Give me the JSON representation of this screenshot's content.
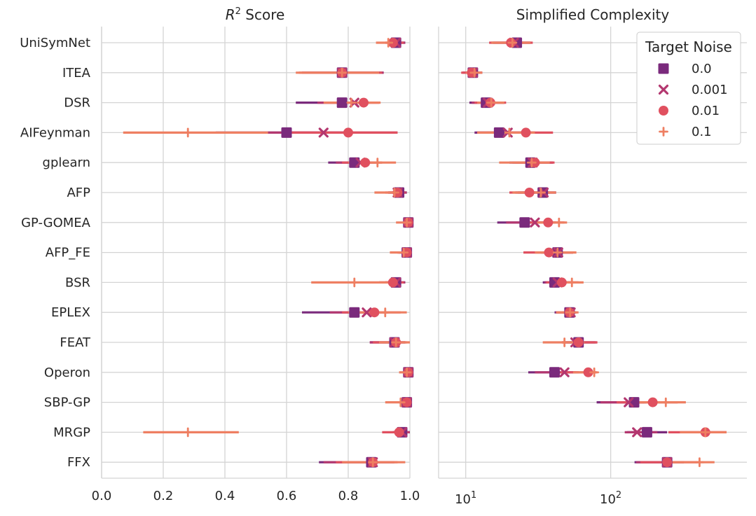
{
  "chart_data": [
    {
      "type": "dot-errorbar",
      "title_var": "R",
      "title_sup": "2",
      "title_rest": " Score",
      "xscale": "linear",
      "xlim": [
        0.0,
        1.0
      ],
      "xticks": [
        0.0,
        0.2,
        0.4,
        0.6,
        0.8,
        1.0
      ],
      "xtick_labels": [
        "0.0",
        "0.2",
        "0.4",
        "0.6",
        "0.8",
        "1.0"
      ],
      "categories": [
        "UniSymNet",
        "ITEA",
        "DSR",
        "AIFeynman",
        "gplearn",
        "AFP",
        "GP-GOMEA",
        "AFP_FE",
        "BSR",
        "EPLEX",
        "FEAT",
        "Operon",
        "SBP-GP",
        "MRGP",
        "FFX"
      ],
      "series": [
        {
          "name": "0.0",
          "points": [
            {
              "v": 0.955,
              "lo": 0.93,
              "hi": 0.985
            },
            {
              "v": 0.78,
              "lo": 0.65,
              "hi": 0.915
            },
            {
              "v": 0.78,
              "lo": 0.63,
              "hi": 0.86
            },
            {
              "v": 0.6,
              "lo": 0.37,
              "hi": 0.8
            },
            {
              "v": 0.82,
              "lo": 0.735,
              "hi": 0.87
            },
            {
              "v": 0.965,
              "lo": 0.93,
              "hi": 0.99
            },
            {
              "v": 0.995,
              "lo": 0.985,
              "hi": 1.0
            },
            {
              "v": 0.99,
              "lo": 0.965,
              "hi": 1.0
            },
            {
              "v": 0.955,
              "lo": 0.92,
              "hi": 0.985
            },
            {
              "v": 0.82,
              "lo": 0.65,
              "hi": 0.89
            },
            {
              "v": 0.95,
              "lo": 0.87,
              "hi": 0.985
            },
            {
              "v": 0.995,
              "lo": 0.985,
              "hi": 1.0
            },
            {
              "v": 0.99,
              "lo": 0.97,
              "hi": 1.0
            },
            {
              "v": 0.975,
              "lo": 0.945,
              "hi": 1.0
            },
            {
              "v": 0.875,
              "lo": 0.705,
              "hi": 0.95
            }
          ]
        },
        {
          "name": "0.001",
          "points": [
            {
              "v": 0.955,
              "lo": 0.93,
              "hi": 0.985
            },
            {
              "v": 0.78,
              "lo": 0.65,
              "hi": 0.915
            },
            {
              "v": 0.82,
              "lo": 0.7,
              "hi": 0.87
            },
            {
              "v": 0.72,
              "lo": 0.54,
              "hi": 0.96
            },
            {
              "v": 0.84,
              "lo": 0.76,
              "hi": 0.89
            },
            {
              "v": 0.96,
              "lo": 0.93,
              "hi": 0.99
            },
            {
              "v": 0.995,
              "lo": 0.985,
              "hi": 1.0
            },
            {
              "v": 0.99,
              "lo": 0.965,
              "hi": 1.0
            },
            {
              "v": 0.955,
              "lo": 0.92,
              "hi": 0.985
            },
            {
              "v": 0.86,
              "lo": 0.74,
              "hi": 0.93
            },
            {
              "v": 0.95,
              "lo": 0.87,
              "hi": 0.985
            },
            {
              "v": 0.995,
              "lo": 0.985,
              "hi": 1.0
            },
            {
              "v": 0.99,
              "lo": 0.97,
              "hi": 1.0
            },
            {
              "v": 0.975,
              "lo": 0.945,
              "hi": 1.0
            },
            {
              "v": 0.88,
              "lo": 0.72,
              "hi": 0.95
            }
          ]
        },
        {
          "name": "0.01",
          "points": [
            {
              "v": 0.945,
              "lo": 0.92,
              "hi": 0.98
            },
            {
              "v": 0.78,
              "lo": 0.64,
              "hi": 0.91
            },
            {
              "v": 0.85,
              "lo": 0.74,
              "hi": 0.9
            },
            {
              "v": 0.8,
              "lo": 0.6,
              "hi": 0.96
            },
            {
              "v": 0.855,
              "lo": 0.78,
              "hi": 0.91
            },
            {
              "v": 0.96,
              "lo": 0.92,
              "hi": 0.985
            },
            {
              "v": 0.995,
              "lo": 0.98,
              "hi": 1.0
            },
            {
              "v": 0.99,
              "lo": 0.96,
              "hi": 1.0
            },
            {
              "v": 0.945,
              "lo": 0.9,
              "hi": 0.98
            },
            {
              "v": 0.885,
              "lo": 0.78,
              "hi": 0.97
            },
            {
              "v": 0.955,
              "lo": 0.88,
              "hi": 0.99
            },
            {
              "v": 0.995,
              "lo": 0.98,
              "hi": 1.0
            },
            {
              "v": 0.99,
              "lo": 0.965,
              "hi": 1.0
            },
            {
              "v": 0.965,
              "lo": 0.91,
              "hi": 0.995
            },
            {
              "v": 0.88,
              "lo": 0.76,
              "hi": 0.96
            }
          ]
        },
        {
          "name": "0.1",
          "points": [
            {
              "v": 0.93,
              "lo": 0.89,
              "hi": 0.97
            },
            {
              "v": 0.78,
              "lo": 0.63,
              "hi": 0.9
            },
            {
              "v": 0.81,
              "lo": 0.72,
              "hi": 0.905
            },
            {
              "v": 0.28,
              "lo": 0.07,
              "hi": 0.54
            },
            {
              "v": 0.895,
              "lo": 0.8,
              "hi": 0.955
            },
            {
              "v": 0.95,
              "lo": 0.885,
              "hi": 0.98
            },
            {
              "v": 0.99,
              "lo": 0.955,
              "hi": 1.0
            },
            {
              "v": 0.98,
              "lo": 0.935,
              "hi": 1.0
            },
            {
              "v": 0.82,
              "lo": 0.68,
              "hi": 0.94
            },
            {
              "v": 0.92,
              "lo": 0.8,
              "hi": 0.99
            },
            {
              "v": 0.955,
              "lo": 0.9,
              "hi": 1.0
            },
            {
              "v": 0.99,
              "lo": 0.965,
              "hi": 1.0
            },
            {
              "v": 0.97,
              "lo": 0.92,
              "hi": 1.0
            },
            {
              "v": 0.28,
              "lo": 0.135,
              "hi": 0.445
            },
            {
              "v": 0.88,
              "lo": 0.78,
              "hi": 0.985
            }
          ]
        }
      ]
    },
    {
      "type": "dot-errorbar",
      "title": "Simplified Complexity",
      "xscale": "log",
      "xlim": [
        6.5,
        870
      ],
      "xticks": [
        10,
        100
      ],
      "xtick_base": [
        "10",
        "10"
      ],
      "xtick_exp": [
        "1",
        "2"
      ],
      "categories": [
        "UniSymNet",
        "ITEA",
        "DSR",
        "AIFeynman",
        "gplearn",
        "AFP",
        "GP-GOMEA",
        "AFP_FE",
        "BSR",
        "EPLEX",
        "FEAT",
        "Operon",
        "SBP-GP",
        "MRGP",
        "FFX"
      ],
      "series": [
        {
          "name": "0.0",
          "points": [
            {
              "v": 22.5,
              "lo": 15.5,
              "hi": 28
            },
            {
              "v": 11.2,
              "lo": 9.5,
              "hi": 13.0
            },
            {
              "v": 13.8,
              "lo": 10.6,
              "hi": 18.5
            },
            {
              "v": 17.0,
              "lo": 11.5,
              "hi": 28
            },
            {
              "v": 28.0,
              "lo": 20,
              "hi": 40
            },
            {
              "v": 34.0,
              "lo": 22,
              "hi": 42
            },
            {
              "v": 25.5,
              "lo": 16.5,
              "hi": 40
            },
            {
              "v": 43.0,
              "lo": 33,
              "hi": 55
            },
            {
              "v": 41.0,
              "lo": 34,
              "hi": 53
            },
            {
              "v": 52.0,
              "lo": 41,
              "hi": 57
            },
            {
              "v": 60.0,
              "lo": 48,
              "hi": 80
            },
            {
              "v": 41.0,
              "lo": 27,
              "hi": 58
            },
            {
              "v": 145.0,
              "lo": 80,
              "hi": 175
            },
            {
              "v": 178.0,
              "lo": 130,
              "hi": 245
            },
            {
              "v": 245.0,
              "lo": 146,
              "hi": 320
            }
          ]
        },
        {
          "name": "0.001",
          "points": [
            {
              "v": 21.5,
              "lo": 15,
              "hi": 28
            },
            {
              "v": 11.2,
              "lo": 9.5,
              "hi": 13.0
            },
            {
              "v": 14.2,
              "lo": 11,
              "hi": 18.5
            },
            {
              "v": 19.5,
              "lo": 12,
              "hi": 30
            },
            {
              "v": 29.0,
              "lo": 21,
              "hi": 40
            },
            {
              "v": 34.5,
              "lo": 23,
              "hi": 42
            },
            {
              "v": 30.0,
              "lo": 19,
              "hi": 42
            },
            {
              "v": 43.5,
              "lo": 34,
              "hi": 55
            },
            {
              "v": 43.0,
              "lo": 35,
              "hi": 55
            },
            {
              "v": 53.0,
              "lo": 42,
              "hi": 58
            },
            {
              "v": 57.0,
              "lo": 46,
              "hi": 78
            },
            {
              "v": 48.0,
              "lo": 30,
              "hi": 60
            },
            {
              "v": 133.0,
              "lo": 85,
              "hi": 170
            },
            {
              "v": 152.0,
              "lo": 125,
              "hi": 210
            },
            {
              "v": 245.0,
              "lo": 150,
              "hi": 320
            }
          ]
        },
        {
          "name": "0.01",
          "points": [
            {
              "v": 20.5,
              "lo": 14.5,
              "hi": 29
            },
            {
              "v": 11.0,
              "lo": 9.3,
              "hi": 13.0
            },
            {
              "v": 14.8,
              "lo": 11.5,
              "hi": 19
            },
            {
              "v": 26.0,
              "lo": 14,
              "hi": 40
            },
            {
              "v": 30.0,
              "lo": 22,
              "hi": 41
            },
            {
              "v": 27.5,
              "lo": 20,
              "hi": 38
            },
            {
              "v": 37.0,
              "lo": 26,
              "hi": 48
            },
            {
              "v": 37.5,
              "lo": 25,
              "hi": 55
            },
            {
              "v": 46.0,
              "lo": 36,
              "hi": 60
            },
            {
              "v": 52.0,
              "lo": 43,
              "hi": 58
            },
            {
              "v": 60.0,
              "lo": 46,
              "hi": 81
            },
            {
              "v": 70.0,
              "lo": 45,
              "hi": 80
            },
            {
              "v": 195.0,
              "lo": 110,
              "hi": 290
            },
            {
              "v": 450.0,
              "lo": 250,
              "hi": 630
            },
            {
              "v": 245.0,
              "lo": 160,
              "hi": 400
            }
          ]
        },
        {
          "name": "0.1",
          "points": [
            {
              "v": 21.0,
              "lo": 15,
              "hi": 28
            },
            {
              "v": 11.5,
              "lo": 10,
              "hi": 13.0
            },
            {
              "v": 15.0,
              "lo": 12,
              "hi": 18.5
            },
            {
              "v": 20.0,
              "lo": 12,
              "hi": 30
            },
            {
              "v": 28.5,
              "lo": 17,
              "hi": 38
            },
            {
              "v": 33.0,
              "lo": 21,
              "hi": 42
            },
            {
              "v": 44.0,
              "lo": 31,
              "hi": 50
            },
            {
              "v": 43.0,
              "lo": 30,
              "hi": 58
            },
            {
              "v": 54.0,
              "lo": 39,
              "hi": 65
            },
            {
              "v": 52.5,
              "lo": 42,
              "hi": 60
            },
            {
              "v": 48.0,
              "lo": 34,
              "hi": 66
            },
            {
              "v": 77.0,
              "lo": 55,
              "hi": 80
            },
            {
              "v": 240.0,
              "lo": 145,
              "hi": 330
            },
            {
              "v": 450.0,
              "lo": 300,
              "hi": 630
            },
            {
              "v": 410.0,
              "lo": 250,
              "hi": 520
            }
          ]
        }
      ]
    }
  ],
  "legend": {
    "title": "Target Noise",
    "placement": "top-right of second panel",
    "entries": [
      {
        "label": "0.0",
        "marker": "square",
        "color": "#7a2a7c"
      },
      {
        "label": "0.001",
        "marker": "x",
        "color": "#b3376f"
      },
      {
        "label": "0.01",
        "marker": "circle",
        "color": "#e0505f"
      },
      {
        "label": "0.1",
        "marker": "plus",
        "color": "#ee7f62"
      }
    ]
  }
}
